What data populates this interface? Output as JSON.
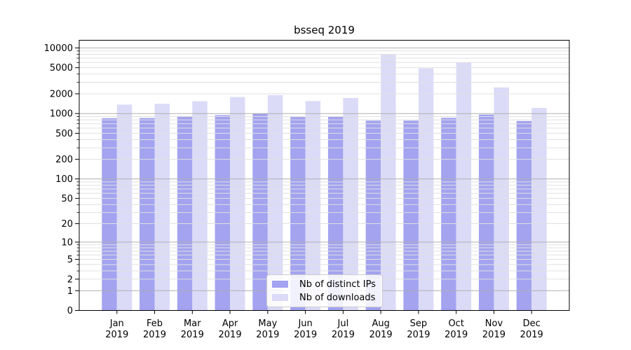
{
  "colors": {
    "background": "#ffffff",
    "ips_bar": "#a3a3f0",
    "downloads_bar": "#dbdbf8",
    "major_grid": "#b0b0b0",
    "minor_grid": "#e0e0e0",
    "axis": "#000000",
    "legend_border": "#cccccc"
  },
  "chart_data": {
    "type": "bar",
    "title": "bsseq 2019",
    "categories": [
      "Jan",
      "Feb",
      "Mar",
      "Apr",
      "May",
      "Jun",
      "Jul",
      "Aug",
      "Sep",
      "Oct",
      "Nov",
      "Dec"
    ],
    "category_year": "2019",
    "series": [
      {
        "name": "Nb of distinct IPs",
        "color_key": "ips_bar",
        "values": [
          850,
          855,
          915,
          945,
          1000,
          885,
          890,
          780,
          780,
          860,
          965,
          770
        ]
      },
      {
        "name": "Nb of downloads",
        "color_key": "downloads_bar",
        "values": [
          1370,
          1410,
          1540,
          1790,
          1910,
          1550,
          1730,
          7990,
          4890,
          6000,
          2500,
          1220
        ]
      }
    ],
    "xlabel": "",
    "ylabel": "",
    "y_scale": "log10(1+x)",
    "y_ticks": [
      0,
      1,
      2,
      5,
      10,
      20,
      50,
      100,
      200,
      500,
      1000,
      2000,
      5000,
      10000
    ],
    "ylim": [
      0,
      13100
    ],
    "grid": true,
    "grid_major_at": [
      1,
      10,
      100,
      1000,
      10000
    ],
    "legend_position": "lower center"
  }
}
